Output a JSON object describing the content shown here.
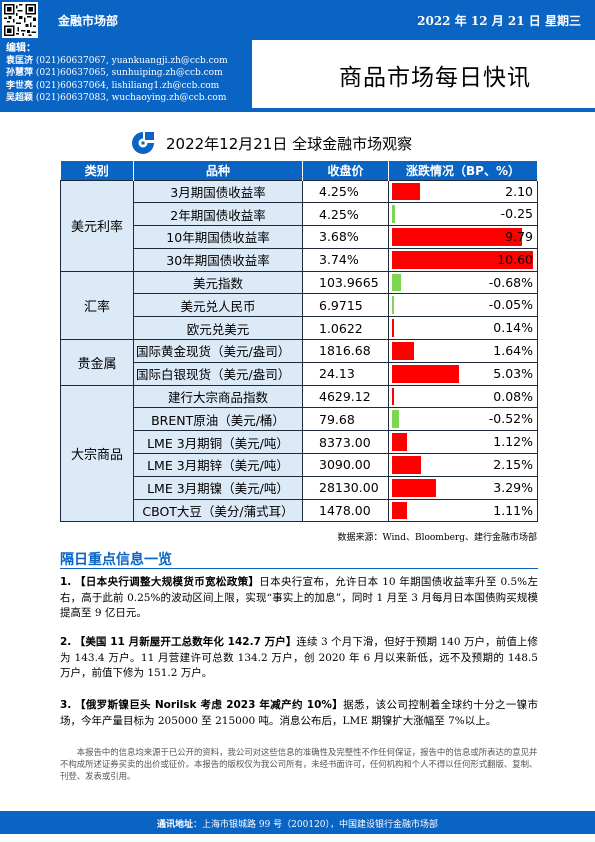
{
  "header": {
    "dept": "金融市场部",
    "date": "2022 年 12 月 21 日 星期三",
    "title": "商品市场每日快讯",
    "editors_title": "编辑：",
    "editors": [
      {
        "name": "袁匡济",
        "phone": "(021)60637067,",
        "email": "yuankuangji.zh@ccb.com"
      },
      {
        "name": "孙慧萍",
        "phone": "(021)60637065,",
        "email": "sunhuiping.zh@ccb.com"
      },
      {
        "name": "李世亮",
        "phone": "(021)60637064,",
        "email": "lishiliang1.zh@ccb.com"
      },
      {
        "name": "吴超颖",
        "phone": "(021)60637083,",
        "email": "wuchaoying.zh@ccb.com"
      }
    ]
  },
  "subtitle": "2022年12月21日 全球金融市场观察",
  "table": {
    "headers": [
      "类别",
      "品种",
      "收盘价",
      "涨跌情况（BP、%）"
    ],
    "groups": [
      {
        "category": "美元利率",
        "rows": [
          {
            "name": "3月期国债收益率",
            "close": "4.25%",
            "change": 2.1,
            "label": "2.10"
          },
          {
            "name": "2年期国债收益率",
            "close": "4.25%",
            "change": -0.25,
            "label": "-0.25"
          },
          {
            "name": "10年期国债收益率",
            "close": "3.68%",
            "change": 9.79,
            "label": "9.79"
          },
          {
            "name": "30年期国债收益率",
            "close": "3.74%",
            "change": 10.6,
            "label": "10.60"
          }
        ]
      },
      {
        "category": "汇率",
        "rows": [
          {
            "name": "美元指数",
            "close": "103.9665",
            "change": -0.68,
            "label": "-0.68%"
          },
          {
            "name": "美元兑人民币",
            "close": "6.9715",
            "change": -0.05,
            "label": "-0.05%"
          },
          {
            "name": "欧元兑美元",
            "close": "1.0622",
            "change": 0.14,
            "label": "0.14%"
          }
        ]
      },
      {
        "category": "贵金属",
        "rows": [
          {
            "name": "国际黄金现货（美元/盎司）",
            "close": "1816.68",
            "change": 1.64,
            "label": "1.64%"
          },
          {
            "name": "国际白银现货（美元/盎司）",
            "close": "24.13",
            "change": 5.03,
            "label": "5.03%"
          }
        ]
      },
      {
        "category": "大宗商品",
        "rows": [
          {
            "name": "建行大宗商品指数",
            "close": "4629.12",
            "change": 0.08,
            "label": "0.08%"
          },
          {
            "name": "BRENT原油（美元/桶）",
            "close": "79.68",
            "change": -0.52,
            "label": "-0.52%"
          },
          {
            "name": "LME 3月期铜（美元/吨）",
            "close": "8373.00",
            "change": 1.12,
            "label": "1.12%"
          },
          {
            "name": "LME 3月期锌（美元/吨）",
            "close": "3090.00",
            "change": 2.15,
            "label": "2.15%"
          },
          {
            "name": "LME 3月期镍（美元/吨）",
            "close": "28130.00",
            "change": 3.29,
            "label": "3.29%"
          },
          {
            "name": "CBOT大豆（美分/蒲式耳）",
            "close": "1478.00",
            "change": 1.11,
            "label": "1.11%"
          }
        ]
      }
    ],
    "source": "数据来源：Wind、Bloomberg、建行金融市场部"
  },
  "news": {
    "title": "隔日重点信息一览",
    "items": [
      {
        "num": "1.",
        "head": "【日本央行调整大规模货币宽松政策】",
        "body": "日本央行宣布，允许日本 10 年期国债收益率升至 0.5%左右，高于此前 0.25%的波动区间上限，实现“事实上的加息”，同时 1 月至 3 月每月日本国债购买规模提高至 9 亿日元。"
      },
      {
        "num": "2.",
        "head": "【美国 11 月新屋开工总数年化 142.7 万户】",
        "body": "连续 3 个月下滑，但好于预期 140 万户，前值上修为 143.4 万户。11 月营建许可总数 134.2 万户，创 2020 年 6 月以来新低，远不及预期的 148.5 万户，前值下修为 151.2 万户。"
      },
      {
        "num": "3.",
        "head": "【俄罗斯镍巨头 Norilsk 考虑 2023 年减产约 10%】",
        "body": "据悉，该公司控制着全球约十分之一镍市场，今年产量目标为 205000 至 215000 吨。消息公布后，LME 期镍扩大涨幅至 7%以上。"
      }
    ]
  },
  "disclaimer": "本报告中的信息均来源于已公开的资料，我公司对这些信息的准确性及完整性不作任何保证，报告中的信息或所表达的意见并不构成所述证券买卖的出价或征价。本报告的版权仅为我公司所有，未经书面许可，任何机构和个人不得以任何形式翻版、复制、刊登、发表或引用。",
  "footer": {
    "label": "通讯地址",
    "address": "：上海市银城路 99 号（200120），中国建设银行金融市场部"
  },
  "colors": {
    "brand": "#0a64c3",
    "up": "#ff0000",
    "down": "#7cd64f",
    "cell": "#dce9f7"
  }
}
